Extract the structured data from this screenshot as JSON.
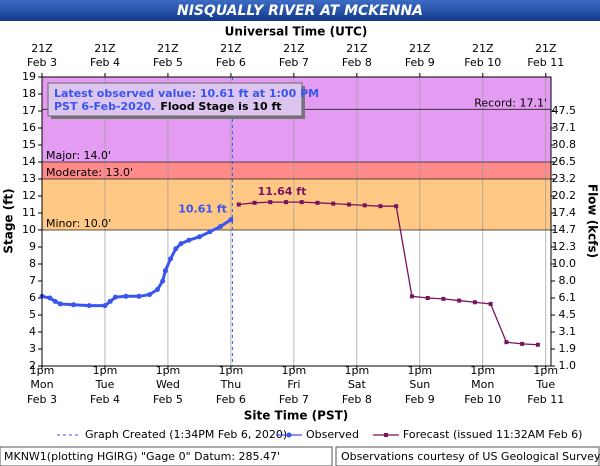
{
  "chart_data": {
    "type": "line",
    "title": "NISQUALLY RIVER AT MCKENNA",
    "top_axis_title": "Universal Time (UTC)",
    "x_axis_title": "Site Time (PST)",
    "y_axis_title": "Stage (ft)",
    "y2_axis_title": "Flow (kcfs)",
    "xlim": [
      "2020-02-03T13:00",
      "2020-02-11T15:00"
    ],
    "xticks": [
      {
        "value": "2020-02-03T13:00",
        "label": "1pm",
        "weekday": "Mon",
        "date": "Feb 3"
      },
      {
        "value": "2020-02-04T13:00",
        "label": "1pm",
        "weekday": "Tue",
        "date": "Feb 4"
      },
      {
        "value": "2020-02-05T13:00",
        "label": "1pm",
        "weekday": "Wed",
        "date": "Feb 5"
      },
      {
        "value": "2020-02-06T13:00",
        "label": "1pm",
        "weekday": "Thu",
        "date": "Feb 6"
      },
      {
        "value": "2020-02-07T13:00",
        "label": "1pm",
        "weekday": "Fri",
        "date": "Feb 7"
      },
      {
        "value": "2020-02-08T13:00",
        "label": "1pm",
        "weekday": "Sat",
        "date": "Feb 8"
      },
      {
        "value": "2020-02-09T13:00",
        "label": "1pm",
        "weekday": "Sun",
        "date": "Feb 9"
      },
      {
        "value": "2020-02-10T13:00",
        "label": "1pm",
        "weekday": "Mon",
        "date": "Feb 10"
      },
      {
        "value": "2020-02-11T13:00",
        "label": "1pm",
        "weekday": "Tue",
        "date": "Feb 11"
      }
    ],
    "x2ticks": [
      {
        "value": "2020-02-03T13:00",
        "label": "21Z",
        "date": "Feb 3"
      },
      {
        "value": "2020-02-04T13:00",
        "label": "21Z",
        "date": "Feb 4"
      },
      {
        "value": "2020-02-05T13:00",
        "label": "21Z",
        "date": "Feb 5"
      },
      {
        "value": "2020-02-06T13:00",
        "label": "21Z",
        "date": "Feb 6"
      },
      {
        "value": "2020-02-07T13:00",
        "label": "21Z",
        "date": "Feb 7"
      },
      {
        "value": "2020-02-08T13:00",
        "label": "21Z",
        "date": "Feb 8"
      },
      {
        "value": "2020-02-09T13:00",
        "label": "21Z",
        "date": "Feb 9"
      },
      {
        "value": "2020-02-10T13:00",
        "label": "21Z",
        "date": "Feb 10"
      },
      {
        "value": "2020-02-11T13:00",
        "label": "21Z",
        "date": "Feb 11"
      }
    ],
    "ylim": [
      2,
      19
    ],
    "yticks": [
      2,
      3,
      4,
      5,
      6,
      7,
      8,
      9,
      10,
      11,
      12,
      13,
      14,
      15,
      16,
      17,
      18,
      19
    ],
    "y2ticks": [
      {
        "value": 1.0,
        "label": "1.0",
        "stage": 2
      },
      {
        "value": 1.9,
        "stage": 3
      },
      {
        "value": 3.1,
        "stage": 4
      },
      {
        "value": 4.5,
        "stage": 5
      },
      {
        "value": 6.1,
        "stage": 6
      },
      {
        "value": 8.0,
        "label": "8.0",
        "stage": 7
      },
      {
        "value": 10.0,
        "label": "10.0",
        "stage": 8
      },
      {
        "value": 12.3,
        "stage": 9
      },
      {
        "value": 14.7,
        "stage": 10
      },
      {
        "value": 17.4,
        "stage": 11
      },
      {
        "value": 20.2,
        "stage": 12
      },
      {
        "value": 23.2,
        "stage": 13
      },
      {
        "value": 26.5,
        "stage": 14
      },
      {
        "value": 30.8,
        "stage": 15
      },
      {
        "value": 37.1,
        "stage": 16
      },
      {
        "value": 47.5,
        "stage": 17
      }
    ],
    "grid_x": true,
    "flood_categories": [
      {
        "label": "Minor: 10.0'",
        "value": 10,
        "color": "#ffc884"
      },
      {
        "label": "Moderate: 13.0'",
        "value": 13,
        "color": "#ff8a8a"
      },
      {
        "label": "Major: 14.0'",
        "value": 14,
        "color": "#e49cf2"
      }
    ],
    "record": {
      "label": "Record: 17.1'",
      "value": 17.1
    },
    "series": [
      {
        "name": "Observed",
        "color": "#3a55ee",
        "marker": "circle",
        "x": [
          "2020-02-03T13:00",
          "2020-02-03T16:00",
          "2020-02-03T18:00",
          "2020-02-03T20:00",
          "2020-02-04T01:00",
          "2020-02-04T07:00",
          "2020-02-04T13:00",
          "2020-02-04T15:00",
          "2020-02-04T17:00",
          "2020-02-04T21:00",
          "2020-02-05T02:00",
          "2020-02-05T06:00",
          "2020-02-05T09:00",
          "2020-02-05T11:00",
          "2020-02-05T12:00",
          "2020-02-05T14:00",
          "2020-02-05T16:00",
          "2020-02-05T18:00",
          "2020-02-05T21:00",
          "2020-02-06T01:00",
          "2020-02-06T05:00",
          "2020-02-06T09:00",
          "2020-02-06T13:00"
        ],
        "values": [
          6.1,
          6.0,
          5.8,
          5.65,
          5.6,
          5.55,
          5.55,
          5.8,
          6.05,
          6.1,
          6.1,
          6.2,
          6.5,
          7.0,
          7.6,
          8.3,
          8.9,
          9.2,
          9.4,
          9.6,
          9.9,
          10.2,
          10.61
        ]
      },
      {
        "name": "Forecast (issued 11:32AM Feb 6)",
        "color": "#7a1262",
        "marker": "square",
        "x": [
          "2020-02-06T16:00",
          "2020-02-06T22:00",
          "2020-02-07T04:00",
          "2020-02-07T10:00",
          "2020-02-07T16:00",
          "2020-02-07T22:00",
          "2020-02-08T04:00",
          "2020-02-08T10:00",
          "2020-02-08T16:00",
          "2020-02-08T22:00",
          "2020-02-09T04:00",
          "2020-02-09T10:00",
          "2020-02-09T16:00",
          "2020-02-09T22:00",
          "2020-02-10T04:00",
          "2020-02-10T10:00",
          "2020-02-10T16:00",
          "2020-02-10T22:00",
          "2020-02-11T04:00",
          "2020-02-11T10:00"
        ],
        "values": [
          11.5,
          11.6,
          11.64,
          11.64,
          11.64,
          11.6,
          11.55,
          11.5,
          11.45,
          11.4,
          11.4,
          6.1,
          6.0,
          5.95,
          5.85,
          5.75,
          5.65,
          3.4,
          3.3,
          3.25
        ]
      }
    ],
    "annotations": [
      {
        "text": "10.61 ft",
        "x": "2020-02-06T13:00",
        "y": 10.61,
        "color": "#3a55ee"
      },
      {
        "text": "11.64 ft",
        "x": "2020-02-07T10:00",
        "y": 11.64,
        "color": "#7a1262"
      }
    ],
    "created": {
      "label": "Graph Created (1:34PM Feb 6, 2020)",
      "x": "2020-02-06T13:34",
      "color": "#3a55ee"
    },
    "info_box": {
      "line1": "Latest observed value: 10.61 ft at 1:00 PM",
      "line2a": "PST 6-Feb-2020.",
      "line2b": "Flood Stage is 10 ft"
    },
    "footer_left": "MKNW1(plotting HGIRG) \"Gage 0\" Datum: 285.47'",
    "footer_right": "Observations courtesy of US Geological Survey"
  }
}
